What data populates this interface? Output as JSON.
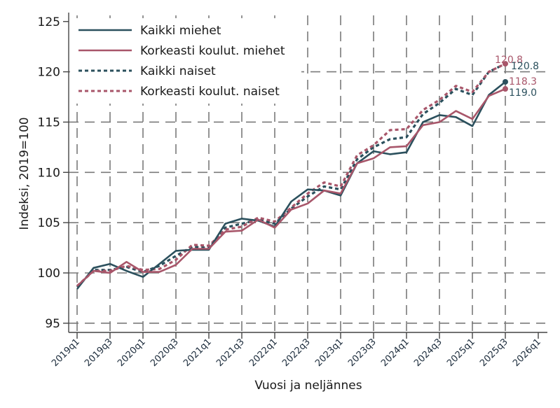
{
  "chart_data": {
    "type": "line",
    "title": "",
    "xlabel": "Vuosi ja neljännes",
    "ylabel": "Indeksi, 2019=100",
    "ylim": [
      95,
      125
    ],
    "yticks": [
      95,
      100,
      105,
      110,
      115,
      120,
      125
    ],
    "grid": true,
    "legend_position": "top-left",
    "xtick_labels": [
      "2019q1",
      "2019q3",
      "2020q1",
      "2020q3",
      "2021q1",
      "2021q3",
      "2022q1",
      "2022q3",
      "2023q1",
      "2023q3",
      "2024q1",
      "2024q3",
      "2025q1",
      "2025q3",
      "2026q1"
    ],
    "x": [
      "2019q1",
      "2019q2",
      "2019q3",
      "2019q4",
      "2020q1",
      "2020q2",
      "2020q3",
      "2020q4",
      "2021q1",
      "2021q2",
      "2021q3",
      "2021q4",
      "2022q1",
      "2022q2",
      "2022q3",
      "2022q4",
      "2023q1",
      "2023q2",
      "2023q3",
      "2023q4",
      "2024q1",
      "2024q2",
      "2024q3",
      "2024q4",
      "2025q1",
      "2025q2",
      "2025q3"
    ],
    "series": [
      {
        "name": "Kaikki miehet",
        "color": "#2b505d",
        "style": "solid",
        "values": [
          98.4,
          100.5,
          100.9,
          100.2,
          99.6,
          100.9,
          102.2,
          102.3,
          102.3,
          104.9,
          105.4,
          105.2,
          104.6,
          107.1,
          108.3,
          108.2,
          107.7,
          110.9,
          112.1,
          111.8,
          112.0,
          115.0,
          115.7,
          115.5,
          114.6,
          117.7,
          119.0
        ],
        "end_label": "119.0"
      },
      {
        "name": "Korkeasti koulut. miehet",
        "color": "#a8566a",
        "style": "solid",
        "values": [
          98.7,
          100.2,
          100.0,
          101.1,
          100.1,
          100.1,
          100.8,
          102.4,
          102.4,
          104.1,
          104.2,
          105.3,
          104.5,
          106.3,
          106.9,
          108.2,
          107.9,
          110.9,
          111.4,
          112.5,
          112.6,
          114.7,
          115.0,
          116.1,
          115.3,
          117.6,
          118.3
        ],
        "end_label": "118.3"
      },
      {
        "name": "Kaikki naiset",
        "color": "#2b505d",
        "style": "dotted",
        "values": [
          98.6,
          100.3,
          100.3,
          100.6,
          100.1,
          100.7,
          101.7,
          102.6,
          102.5,
          104.5,
          104.9,
          105.3,
          104.9,
          106.4,
          107.6,
          108.6,
          108.3,
          111.3,
          112.5,
          113.3,
          113.5,
          115.8,
          116.9,
          118.3,
          117.7,
          120.0,
          120.8
        ],
        "end_label": "120.8"
      },
      {
        "name": "Korkeasti koulut. naiset",
        "color": "#a8566a",
        "style": "dotted",
        "values": [
          98.7,
          100.2,
          100.2,
          100.7,
          100.3,
          100.4,
          101.3,
          102.8,
          102.7,
          104.3,
          104.6,
          105.5,
          105.1,
          106.5,
          107.9,
          109.0,
          108.6,
          111.7,
          112.7,
          114.2,
          114.3,
          116.2,
          117.2,
          118.6,
          118.0,
          120.0,
          120.8
        ],
        "end_label": "120.8"
      }
    ]
  }
}
